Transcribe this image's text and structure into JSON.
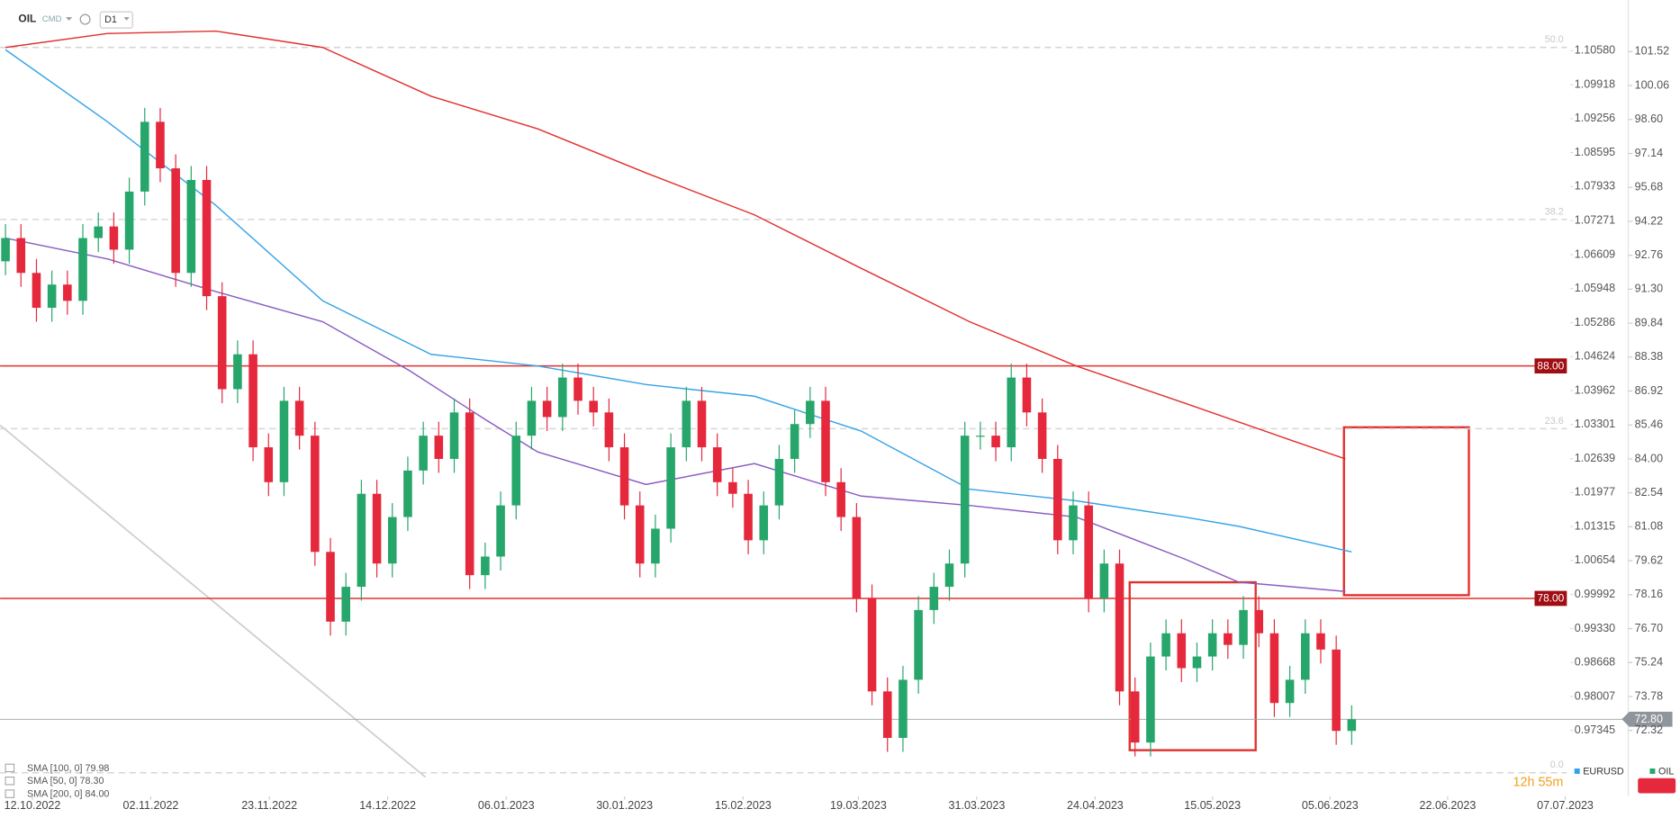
{
  "header": {
    "symbol": "OIL",
    "market": "CMD",
    "timeframe": "D1"
  },
  "timer": "12h 55m",
  "chart_data": {
    "type": "candlestick",
    "x": [
      0,
      1,
      2,
      3,
      4,
      5,
      6,
      7,
      8,
      9,
      10,
      11,
      12,
      13,
      14,
      15,
      16,
      17,
      18,
      19,
      20,
      21,
      22,
      23,
      24,
      25,
      26,
      27,
      28,
      29,
      30,
      31,
      32,
      33,
      34,
      35,
      36,
      37,
      38,
      39,
      40,
      41,
      42,
      43,
      44,
      45,
      46,
      47,
      48,
      49,
      50,
      51,
      52,
      53,
      54,
      55,
      56,
      57,
      58,
      59,
      60,
      61,
      62,
      63,
      64,
      65,
      66,
      67,
      68,
      69,
      70,
      71,
      72,
      73,
      74,
      75,
      76,
      77,
      78,
      79,
      80,
      81,
      82,
      83,
      84,
      85,
      86,
      87
    ],
    "open": [
      92.5,
      93.5,
      92.0,
      90.5,
      91.5,
      90.8,
      93.5,
      94.0,
      93.0,
      95.5,
      98.5,
      96.5,
      92.0,
      96.0,
      91.0,
      87.0,
      88.5,
      84.5,
      83.0,
      86.5,
      85.0,
      80.0,
      77.0,
      78.5,
      82.5,
      79.5,
      81.5,
      83.5,
      85.0,
      84.0,
      86.0,
      79.0,
      79.8,
      82.0,
      85.0,
      86.5,
      85.8,
      87.5,
      86.5,
      86.0,
      84.5,
      82.0,
      79.5,
      81.0,
      84.5,
      86.5,
      84.5,
      83.0,
      82.5,
      80.5,
      82.0,
      84.0,
      85.5,
      86.5,
      83.0,
      81.5,
      78.0,
      74.0,
      72.0,
      74.5,
      77.5,
      78.5,
      79.5,
      85.0,
      85.0,
      84.5,
      87.5,
      86.0,
      84.0,
      80.5,
      82.0,
      78.0,
      79.5,
      74.0,
      71.8,
      75.5,
      76.5,
      75.0,
      75.5,
      76.5,
      76.0,
      77.5,
      76.5,
      73.5,
      74.5,
      76.5,
      75.8,
      72.3
    ],
    "high": [
      94.1,
      94.1,
      92.6,
      92.1,
      92.1,
      94.1,
      94.6,
      94.6,
      96.1,
      99.1,
      99.1,
      97.1,
      96.6,
      96.6,
      91.6,
      89.1,
      89.1,
      85.1,
      87.1,
      87.1,
      85.6,
      80.6,
      79.1,
      83.1,
      83.1,
      82.1,
      84.1,
      85.6,
      85.6,
      86.6,
      86.6,
      80.4,
      82.6,
      85.6,
      87.1,
      87.1,
      88.1,
      88.1,
      87.1,
      86.6,
      85.1,
      82.6,
      81.6,
      85.1,
      87.1,
      87.1,
      85.1,
      83.6,
      83.1,
      82.6,
      84.6,
      86.1,
      87.1,
      87.1,
      83.6,
      82.1,
      78.6,
      74.6,
      75.1,
      78.1,
      79.1,
      80.1,
      85.6,
      85.6,
      85.6,
      88.1,
      88.1,
      86.6,
      84.6,
      82.6,
      82.6,
      80.1,
      80.1,
      74.6,
      76.1,
      77.1,
      77.1,
      76.1,
      77.1,
      77.1,
      78.1,
      78.1,
      77.1,
      75.1,
      77.1,
      77.1,
      76.4,
      73.4
    ],
    "low": [
      91.9,
      91.4,
      89.9,
      89.9,
      90.2,
      90.2,
      92.9,
      92.4,
      92.4,
      94.9,
      95.9,
      91.4,
      91.4,
      90.4,
      86.4,
      86.4,
      83.9,
      82.4,
      82.4,
      84.4,
      79.4,
      76.4,
      76.4,
      77.9,
      78.9,
      78.9,
      80.9,
      82.9,
      83.4,
      83.4,
      78.4,
      78.4,
      79.2,
      81.4,
      84.4,
      85.2,
      85.2,
      85.9,
      85.4,
      83.9,
      81.4,
      78.9,
      78.9,
      80.4,
      83.9,
      83.9,
      82.4,
      81.9,
      79.9,
      79.9,
      81.4,
      83.4,
      84.9,
      82.4,
      80.9,
      77.4,
      73.4,
      71.4,
      71.4,
      73.9,
      76.9,
      77.9,
      78.9,
      84.4,
      83.9,
      83.9,
      85.4,
      83.4,
      79.9,
      79.9,
      77.4,
      77.4,
      73.4,
      71.2,
      71.2,
      74.9,
      74.4,
      74.4,
      74.9,
      75.4,
      75.4,
      75.9,
      72.9,
      72.9,
      73.9,
      75.2,
      71.7,
      71.7
    ],
    "close": [
      93.5,
      92.0,
      90.5,
      91.5,
      90.8,
      93.5,
      94.0,
      93.0,
      95.5,
      98.5,
      96.5,
      92.0,
      96.0,
      91.0,
      87.0,
      88.5,
      84.5,
      83.0,
      86.5,
      85.0,
      80.0,
      77.0,
      78.5,
      82.5,
      79.5,
      81.5,
      83.5,
      85.0,
      84.0,
      86.0,
      79.0,
      79.8,
      82.0,
      85.0,
      86.5,
      85.8,
      87.5,
      86.5,
      86.0,
      84.5,
      82.0,
      79.5,
      81.0,
      84.5,
      86.5,
      84.5,
      83.0,
      82.5,
      80.5,
      82.0,
      84.0,
      85.5,
      86.5,
      83.0,
      81.5,
      78.0,
      74.0,
      72.0,
      74.5,
      77.5,
      78.5,
      79.5,
      85.0,
      85.0,
      84.5,
      87.5,
      86.0,
      84.0,
      80.5,
      82.0,
      78.0,
      79.5,
      74.0,
      71.8,
      75.5,
      76.5,
      75.0,
      75.5,
      76.5,
      76.0,
      77.5,
      76.5,
      73.5,
      74.5,
      76.5,
      75.8,
      72.3,
      72.8
    ],
    "up_color": "#26a66b",
    "down_color": "#e5283c",
    "series": [
      {
        "name": "SMA [100, 0] 79.98",
        "color": "#36a3e8",
        "x": [
          0,
          6.6,
          13.6,
          20.5,
          27.5,
          34.4,
          41.4,
          48.4,
          55.3,
          62.3,
          69.2,
          76.2,
          79.7,
          87.0
        ],
        "values": [
          101.6,
          98.5,
          94.9,
          90.8,
          88.5,
          88.0,
          87.2,
          86.7,
          85.2,
          82.7,
          82.2,
          81.5,
          81.1,
          80.0
        ]
      },
      {
        "name": "SMA [50, 0] 78.30",
        "color": "#8a5cc2",
        "x": [
          0,
          6.6,
          13.6,
          20.5,
          26.1,
          31,
          34.4,
          41.4,
          48.4,
          55.3,
          62.3,
          69.2,
          76.2,
          79.7,
          86.6
        ],
        "values": [
          93.5,
          92.6,
          91.2,
          89.9,
          87.8,
          85.7,
          84.3,
          82.9,
          83.8,
          82.4,
          82.0,
          81.5,
          79.7,
          78.7,
          78.3
        ]
      },
      {
        "name": "SMA [200, 0] 84.00",
        "color": "#e0312e",
        "x": [
          0,
          6.6,
          13.6,
          20.5,
          27.5,
          34.4,
          41.4,
          48.4,
          55.3,
          62.3,
          69.2,
          76.2,
          83.1,
          86.6
        ],
        "values": [
          101.7,
          102.3,
          102.4,
          101.7,
          99.6,
          98.2,
          96.3,
          94.5,
          92.2,
          89.9,
          88.0,
          86.4,
          84.8,
          84.0
        ]
      }
    ],
    "xlim": [
      -0.35,
      98.47
    ],
    "xticks": [
      {
        "value": 1.74,
        "label": "12.10.2022"
      },
      {
        "value": 9.39,
        "label": "02.11.2022"
      },
      {
        "value": 17.05,
        "label": "23.11.2022"
      },
      {
        "value": 24.7,
        "label": "14.12.2022"
      },
      {
        "value": 32.36,
        "label": "06.01.2023"
      },
      {
        "value": 40.01,
        "label": "30.01.2023"
      },
      {
        "value": 47.67,
        "label": "15.02.2023"
      },
      {
        "value": 55.12,
        "label": "19.03.2023"
      },
      {
        "value": 62.77,
        "label": "31.03.2023"
      },
      {
        "value": 70.42,
        "label": "24.04.2023"
      },
      {
        "value": 78.0,
        "label": "15.05.2023"
      },
      {
        "value": 85.6,
        "label": "05.06.2023"
      },
      {
        "value": 93.2,
        "label": "22.06.2023"
      },
      {
        "value": 100.8,
        "label": "07.07.2023"
      }
    ],
    "ylim": [
      69.48,
      103.74
    ],
    "yticks": [
      101.52,
      100.06,
      {
        "value": 98.6,
        "label": "98.60"
      },
      97.14,
      95.68,
      94.22,
      92.76,
      {
        "value": 91.3,
        "label": "91.30"
      },
      89.84,
      88.38,
      86.92,
      85.46,
      {
        "value": 84,
        "label": "84.00"
      },
      82.54,
      81.08,
      79.62,
      78.16,
      {
        "value": 76.7,
        "label": "76.70"
      },
      75.24,
      73.78,
      72.32
    ],
    "y2lim": [
      0.96062,
      1.11565
    ],
    "y2ticks": [
      {
        "value": 1.1058,
        "label": "1.10580"
      },
      1.09918,
      1.09256,
      1.08595,
      1.07933,
      1.07271,
      1.06609,
      1.05948,
      1.05286,
      1.04624,
      1.03962,
      1.03301,
      1.02639,
      1.01977,
      1.01315,
      1.00654,
      0.99992,
      {
        "value": 0.9933,
        "label": "0.99330"
      },
      0.98668,
      0.98007,
      0.97345
    ],
    "hlines": [
      {
        "value": 88,
        "label": "88.00",
        "color": "#e0312e"
      },
      {
        "value": 78,
        "label": "78.00",
        "color": "#e0312e"
      }
    ],
    "fib_levels": [
      {
        "value": 101.7,
        "label": "50.0"
      },
      {
        "value": 94.3,
        "label": "38.2"
      },
      {
        "value": 85.3,
        "label": "23.6"
      },
      {
        "value": 70.5,
        "label": "0.0"
      }
    ],
    "last_price": {
      "value": 72.8,
      "label": "72.80"
    },
    "legend": [
      {
        "name": "EURUSD",
        "color": "#36a3e8"
      },
      {
        "name": "OIL",
        "color": "#26a66b"
      }
    ],
    "grid": false
  }
}
